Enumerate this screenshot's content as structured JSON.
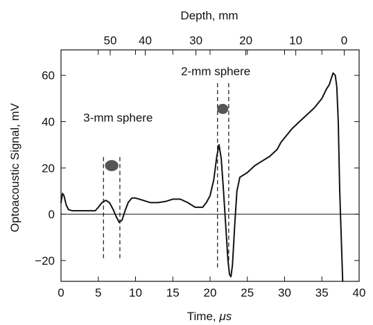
{
  "chart_data": {
    "type": "line",
    "xlabel": "Time, μs",
    "xlabel_main": "Time, ",
    "xlabel_unit": "μs",
    "ylabel": "Optoacoustic Signal, mV",
    "x2label": "Depth, mm",
    "xlim": [
      0,
      40
    ],
    "ylim": [
      -29,
      71
    ],
    "x_ticks": [
      0,
      5,
      10,
      15,
      20,
      25,
      30,
      35,
      40
    ],
    "x_tick_labels": [
      "0",
      "5",
      "10",
      "15",
      "20",
      "25",
      "30",
      "35",
      "40"
    ],
    "y_ticks": [
      -20,
      0,
      20,
      40,
      60
    ],
    "y_tick_labels": [
      "−20",
      "0",
      "20",
      "40",
      "60"
    ],
    "top_ticks": [
      {
        "label": "50",
        "time": 6.6
      },
      {
        "label": "40",
        "time": 11.3
      },
      {
        "label": "30",
        "time": 18.1
      },
      {
        "label": "20",
        "time": 24.8
      },
      {
        "label": "10",
        "time": 31.5
      },
      {
        "label": "0",
        "time": 38.0
      }
    ],
    "series": [
      {
        "x": [
          0.0,
          0.2,
          0.4,
          0.7,
          1.0,
          1.5,
          2.0,
          3.0,
          4.0,
          4.6,
          5.0,
          5.5,
          6.0,
          6.5,
          7.0,
          7.4,
          7.8,
          8.2,
          8.6,
          9.0,
          9.5,
          10.0,
          11.0,
          12.0,
          13.0,
          14.0,
          15.0,
          16.0,
          17.0,
          18.0,
          19.0,
          19.5,
          20.0,
          20.5,
          20.9,
          21.2,
          21.5,
          21.8,
          22.1,
          22.4,
          22.6,
          22.8,
          23.0,
          23.3,
          23.6,
          24.0,
          24.5,
          25.0,
          26.0,
          27.0,
          28.0,
          29.0,
          29.5,
          30.0,
          31.0,
          32.0,
          33.0,
          34.0,
          35.0,
          35.6,
          36.0,
          36.3,
          36.5,
          36.8,
          37.0,
          37.2,
          37.4,
          37.6,
          37.8
        ],
        "y": [
          5,
          9,
          8,
          4,
          2,
          1.5,
          1.5,
          1.5,
          1.5,
          1.5,
          3,
          5,
          6,
          5,
          2,
          -1,
          -3.5,
          -2.5,
          1.5,
          5,
          7,
          7,
          6,
          5,
          5,
          5.5,
          6.5,
          6.5,
          5,
          3,
          3,
          5,
          8,
          15,
          25,
          30,
          24,
          10,
          -5,
          -20,
          -26,
          -27,
          -22,
          -5,
          10,
          16,
          17,
          18,
          21,
          23,
          25,
          28,
          31,
          33,
          37,
          40,
          43,
          46,
          50,
          54,
          56,
          59,
          61,
          60,
          55,
          40,
          10,
          -10,
          -30
        ]
      }
    ],
    "zero_line": 0,
    "annotations": [
      {
        "text": "3-mm sphere",
        "x": 3.0,
        "y": 40
      },
      {
        "text": "2-mm sphere",
        "x": 16.1,
        "y": 60
      }
    ],
    "markers": [
      {
        "type": "dashed-vline",
        "x": 5.7,
        "y_from": -19,
        "y_to": 25
      },
      {
        "type": "dashed-vline",
        "x": 7.9,
        "y_from": -19,
        "y_to": 25
      },
      {
        "type": "dashed-vline",
        "x": 21.0,
        "y_from": -23,
        "y_to": 57
      },
      {
        "type": "dashed-vline",
        "x": 22.5,
        "y_from": -23,
        "y_to": 57
      },
      {
        "type": "ellipse",
        "cx": 6.8,
        "cy": 21,
        "rx": 0.9,
        "ry": 2.4
      },
      {
        "type": "ellipse",
        "cx": 21.7,
        "cy": 45.5,
        "rx": 0.75,
        "ry": 2.2
      }
    ],
    "colors": {
      "line": "#111111",
      "sphere": "#555555",
      "frame": "#111111"
    },
    "grid": false
  }
}
